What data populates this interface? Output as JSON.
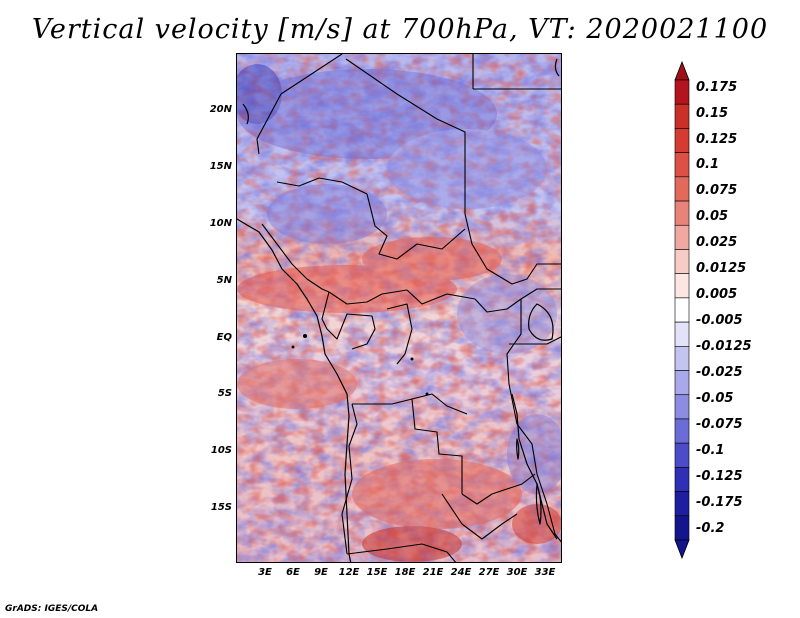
{
  "title": "Vertical velocity [m/s] at 700hPa, VT: 2020021100",
  "credit": "GrADS: IGES/COLA",
  "map": {
    "region": "Central Africa",
    "field": "Vertical velocity",
    "units": "m/s",
    "level": "700hPa",
    "valid_time": "2020021100",
    "lat_labels": [
      "20N",
      "15N",
      "10N",
      "5N",
      "EQ",
      "5S",
      "10S",
      "15S"
    ],
    "lon_labels": [
      "3E",
      "6E",
      "9E",
      "12E",
      "15E",
      "18E",
      "21E",
      "24E",
      "27E",
      "30E",
      "33E"
    ],
    "notable_features": [
      "red (upward) band across 3N-8N from Cameroon to South Sudan",
      "blue (downward) dominated Sahara north of 12N",
      "mixed red/blue over Congo basin and Angola",
      "scattered dark red cells near Lake Malawi and southern Congo"
    ]
  },
  "colorbar": {
    "labels": [
      "0.175",
      "0.15",
      "0.125",
      "0.1",
      "0.075",
      "0.05",
      "0.025",
      "0.0125",
      "0.005",
      "-0.005",
      "-0.0125",
      "-0.025",
      "-0.05",
      "-0.075",
      "-0.1",
      "-0.125",
      "-0.175",
      "-0.2"
    ],
    "colors": [
      "#b4141e",
      "#c83028",
      "#d43c32",
      "#dc5046",
      "#e26a5c",
      "#e8837a",
      "#f0a8a0",
      "#f8ccc6",
      "#fce6e2",
      "#ffffff",
      "#e2e2f8",
      "#c4c4f0",
      "#a8a8ea",
      "#8c8ce2",
      "#6c6cd8",
      "#4c4cc8",
      "#3030b4",
      "#1e1ea0",
      "#14148c"
    ],
    "arrow_top_color": "#a01018",
    "arrow_bottom_color": "#14148c"
  }
}
